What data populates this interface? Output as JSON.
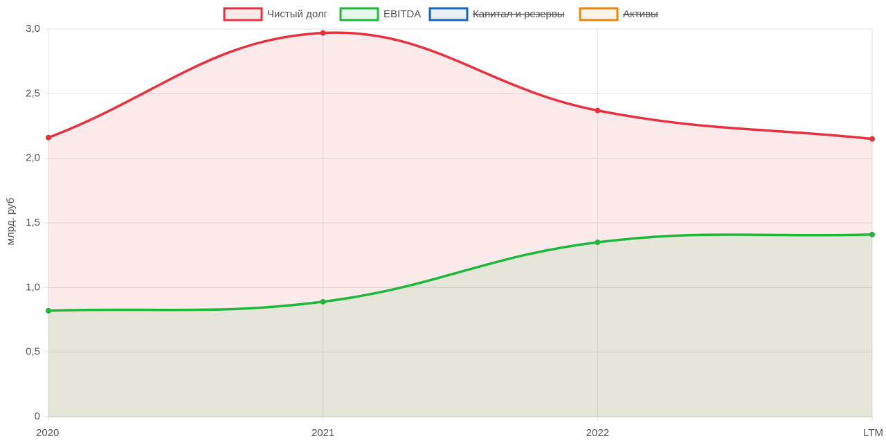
{
  "chart_data": {
    "type": "line",
    "y_label": "млрд. руб",
    "categories": [
      "2020",
      "2021",
      "2022",
      "LTM"
    ],
    "series": [
      {
        "name": "Чистый долг",
        "color": "#e8313f",
        "fill": true,
        "hidden": false,
        "values": [
          2.16,
          2.97,
          2.37,
          2.15
        ]
      },
      {
        "name": "EBITDA",
        "color": "#1db83a",
        "fill": true,
        "hidden": false,
        "values": [
          0.82,
          0.89,
          1.35,
          1.41
        ]
      },
      {
        "name": "Капитал и резервы",
        "color": "#1565c0",
        "fill": true,
        "hidden": true,
        "values": [
          null,
          null,
          null,
          null
        ]
      },
      {
        "name": "Активы",
        "color": "#e6860f",
        "fill": true,
        "hidden": true,
        "values": [
          null,
          null,
          null,
          null
        ]
      }
    ],
    "ylim": [
      0,
      3
    ],
    "yticks": [
      0,
      {
        "value": 0.5,
        "label": "0,5"
      },
      {
        "value": 1,
        "label": "1,0"
      },
      {
        "value": 1.5,
        "label": "1,5"
      },
      {
        "value": 2,
        "label": "2,0"
      },
      {
        "value": 2.5,
        "label": "2,5"
      },
      {
        "value": 3,
        "label": "3,0"
      }
    ],
    "grid": true,
    "legend": "top"
  }
}
